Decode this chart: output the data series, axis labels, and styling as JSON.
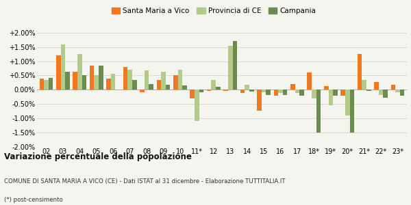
{
  "years": [
    "02",
    "03",
    "04",
    "05",
    "06",
    "07",
    "08",
    "09",
    "10",
    "11*",
    "12",
    "13",
    "14",
    "15",
    "16",
    "17",
    "18*",
    "19*",
    "20*",
    "21*",
    "22*",
    "23*"
  ],
  "santa_maria": [
    0.4,
    1.2,
    0.62,
    0.85,
    0.4,
    0.8,
    -0.08,
    0.35,
    0.5,
    -0.3,
    -0.05,
    -0.05,
    -0.12,
    -0.75,
    -0.2,
    0.2,
    0.6,
    0.12,
    -0.2,
    1.25,
    0.28,
    0.17
  ],
  "provincia_ce": [
    0.35,
    1.58,
    1.25,
    0.5,
    0.55,
    0.7,
    0.68,
    0.62,
    0.7,
    -1.1,
    0.35,
    1.55,
    0.18,
    -0.1,
    -0.12,
    -0.12,
    -0.3,
    -0.55,
    -0.9,
    0.35,
    -0.18,
    -0.08
  ],
  "campania": [
    0.42,
    0.62,
    0.5,
    0.85,
    0.0,
    0.35,
    0.2,
    0.18,
    0.15,
    -0.08,
    0.1,
    1.7,
    -0.07,
    -0.18,
    -0.18,
    -0.2,
    -1.5,
    -0.22,
    -1.5,
    -0.05,
    -0.28,
    -0.2
  ],
  "color_santa_maria": "#f07820",
  "color_provincia": "#b5c98a",
  "color_campania": "#6b8c4e",
  "title": "Variazione percentuale della popolazione",
  "subtitle": "COMUNE DI SANTA MARIA A VICO (CE) - Dati ISTAT al 31 dicembre - Elaborazione TUTTITALIA.IT",
  "footnote": "(*) post-censimento",
  "legend_labels": [
    "Santa Maria a Vico",
    "Provincia di CE",
    "Campania"
  ],
  "ylim": [
    -2.0,
    2.0
  ],
  "yticks": [
    -2.0,
    -1.5,
    -1.0,
    -0.5,
    0.0,
    0.5,
    1.0,
    1.5,
    2.0
  ],
  "background_color": "#f5f5f0"
}
